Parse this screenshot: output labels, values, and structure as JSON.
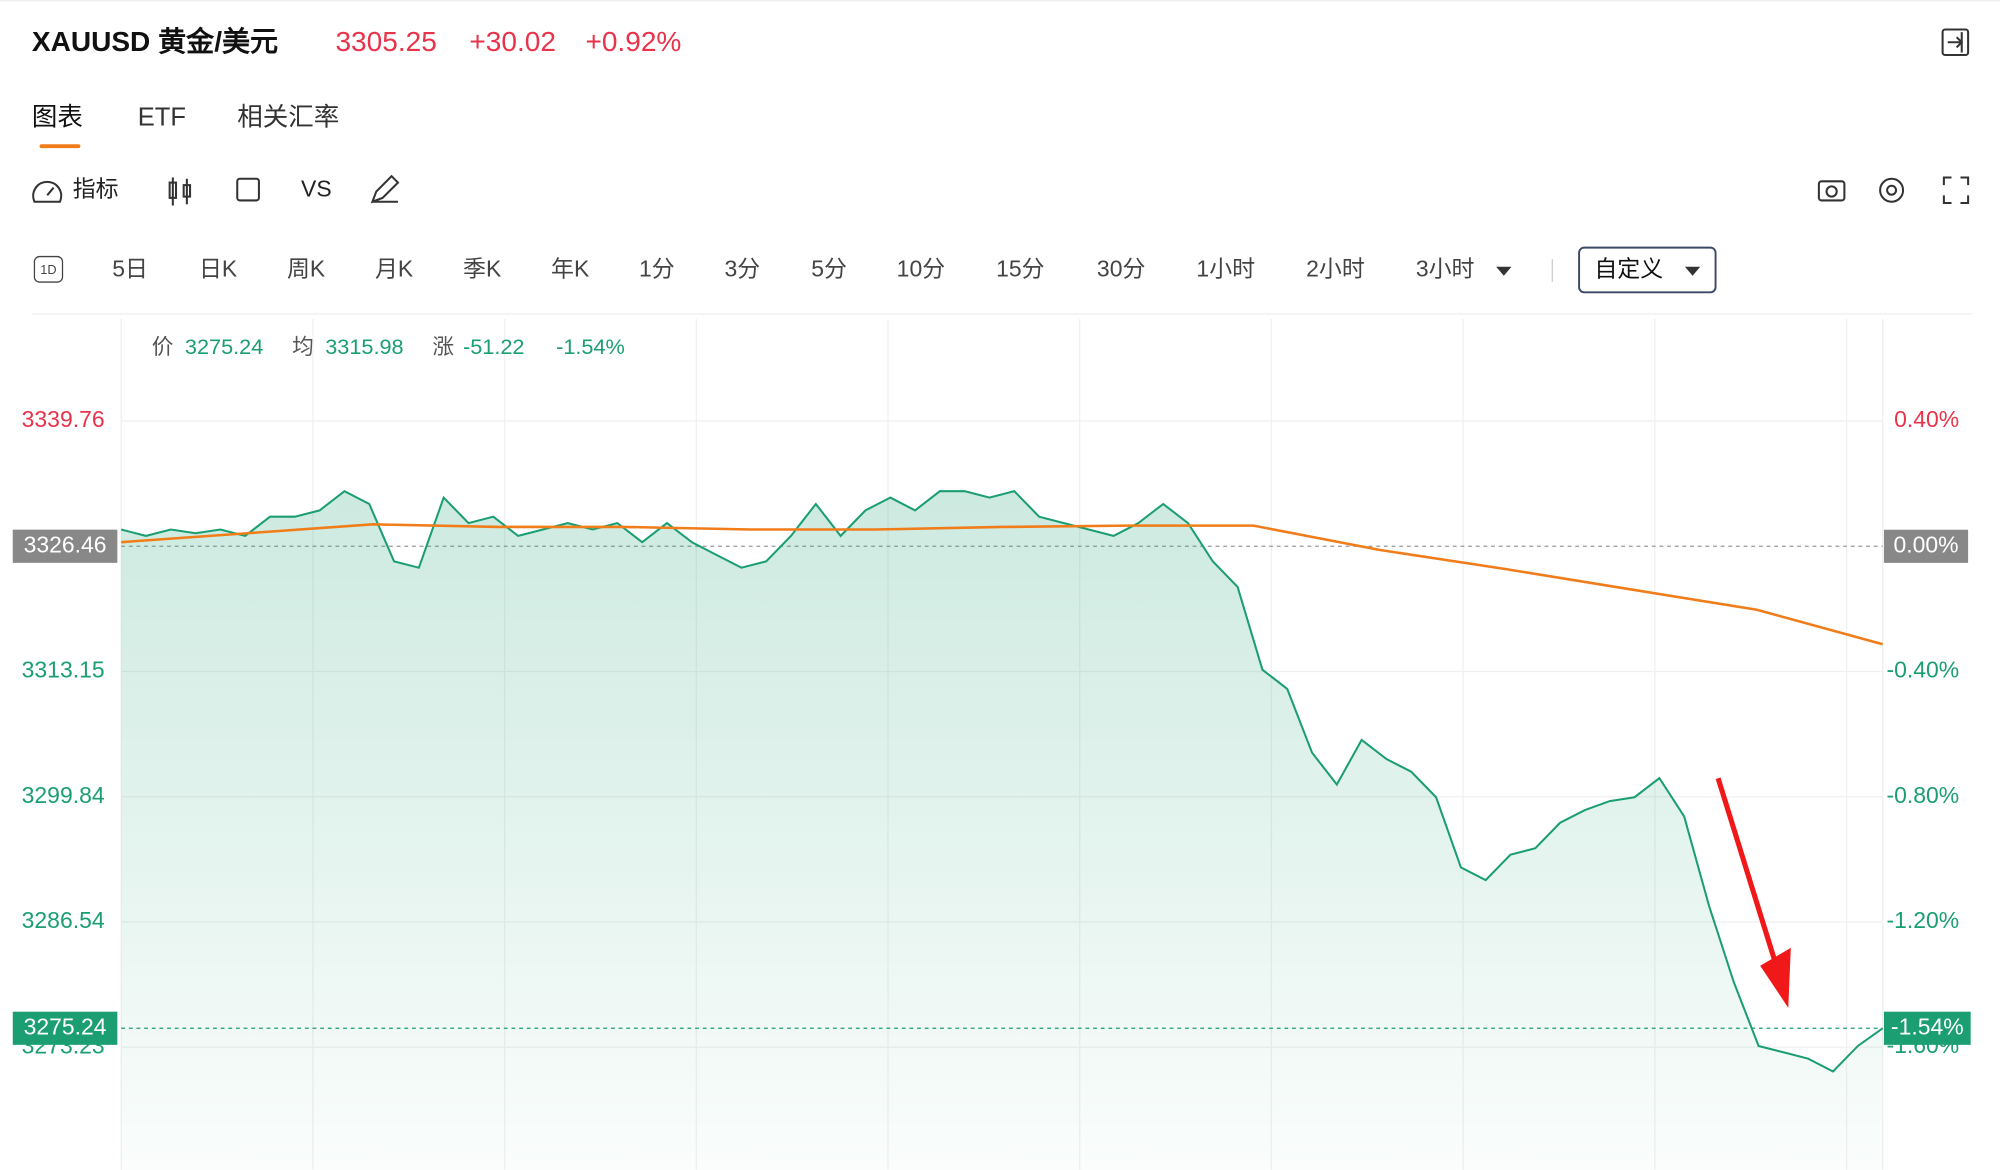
{
  "header": {
    "symbol": "XAUUSD 黄金/美元",
    "price": "3305.25",
    "change": "+30.02",
    "change_percent": "+0.92%"
  },
  "tabs": [
    "图表",
    "ETF",
    "相关汇率"
  ],
  "toolbar": {
    "indicator": "指标",
    "compare": "VS"
  },
  "periods": {
    "icon": "1D",
    "items": [
      "5日",
      "日K",
      "周K",
      "月K",
      "季K",
      "年K",
      "1分",
      "3分",
      "5分",
      "10分",
      "15分",
      "30分",
      "1小时",
      "2小时",
      "3小时"
    ],
    "custom": "自定义"
  },
  "chart_data": {
    "type": "line",
    "info": {
      "price_label": "价",
      "price": 3275.24,
      "avg_label": "均",
      "avg": 3315.98,
      "change_label": "涨",
      "change": -51.22,
      "change_percent": "-1.54%"
    },
    "series": [
      {
        "name": "价",
        "color": "#1a9e72",
        "values": [
          3328.24,
          3327.56,
          3328.24,
          3327.84,
          3328.24,
          3327.56,
          3329.6,
          3329.6,
          3330.27,
          3332.31,
          3330.95,
          3324.85,
          3324.18,
          3331.63,
          3328.92,
          3329.6,
          3327.56,
          3328.24,
          3328.92,
          3328.24,
          3328.92,
          3326.89,
          3328.92,
          3326.89,
          3325.53,
          3324.18,
          3324.85,
          3327.56,
          3330.95,
          3327.56,
          3330.27,
          3331.63,
          3330.27,
          3332.31,
          3332.31,
          3331.63,
          3332.31,
          3329.6,
          3328.92,
          3328.24,
          3327.56,
          3328.92,
          3330.95,
          3328.92,
          3324.85,
          3322.14,
          3313.34,
          3311.3,
          3304.53,
          3301.14,
          3305.88,
          3303.85,
          3302.5,
          3299.79,
          3292.33,
          3290.98,
          3293.69,
          3294.37,
          3297.08,
          3298.43,
          3299.38,
          3299.79,
          3301.82,
          3297.75,
          3288.27,
          3280.14,
          3273.36,
          3272.69,
          3272.01,
          3270.65,
          3273.36,
          3275.24
        ]
      },
      {
        "name": "均",
        "color": "#f07c1a",
        "values": [
          3326.89,
          3327.84,
          3328.79,
          3328.51,
          3328.51,
          3328.24,
          3328.24,
          3328.51,
          3328.65,
          3328.65,
          3326.07,
          3324.04,
          3321.87,
          3319.71,
          3316.05
        ]
      }
    ],
    "ylim": [
      3260.2,
      3350.6
    ],
    "yticks": [
      3339.76,
      3326.46,
      3313.15,
      3299.84,
      3286.54,
      3273.23
    ],
    "y2lim": [
      -1.992,
      0.726
    ],
    "y2ticks": [
      {
        "value": 0.4,
        "label": "0.40%"
      },
      {
        "value": 0,
        "label": "0.00%"
      },
      {
        "value": -0.4,
        "label": "-0.40%"
      },
      {
        "value": -0.8,
        "label": "-0.80%"
      },
      {
        "value": -1.2,
        "label": "-1.20%"
      },
      {
        "value": -1.6,
        "label": "-1.60%"
      }
    ],
    "reference": 3326.46,
    "last_price": 3275.24,
    "last_percent": {
      "value": -1.54,
      "label": "-1.54%"
    },
    "up_color": "#e8334a",
    "down_color": "#1a9e72"
  }
}
